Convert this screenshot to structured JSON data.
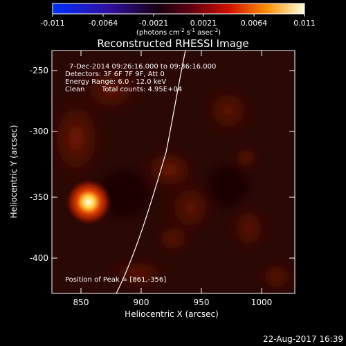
{
  "colorbar": {
    "ticks": [
      "-0.011",
      "-0.0064",
      "-0.0021",
      "0.0021",
      "0.0064",
      "0.011"
    ],
    "unit_main": "(photons cm",
    "unit_exp1": "-2",
    "unit_mid": " s",
    "unit_exp2": "-1",
    "unit_mid2": " asec",
    "unit_exp3": "-2",
    "unit_end": ")"
  },
  "title": "Reconstructed RHESSI Image",
  "info": {
    "line1": "7-Dec-2014 09:26:16.000 to 09:36:16.000",
    "line2": "Detectors: 3F 6F 7F 9F, Att 0",
    "line3": "Energy Range: 6.0 - 12.0 keV",
    "line4_a": "Clean",
    "line4_b": "Total counts: 4.95E+04"
  },
  "peak_label": "Position of Peak = [861,-356]",
  "axes": {
    "xlabel": "Heliocentric X (arcsec)",
    "ylabel": "Heliocentric Y (arcsec)",
    "xticks": [
      "850",
      "900",
      "950",
      "1000"
    ],
    "yticks": [
      "-250",
      "-300",
      "-350",
      "-400"
    ]
  },
  "timestamp": "22-Aug-2017 16:39",
  "colors": {
    "frame": "#ffffff",
    "limb": "#ffffff",
    "background": "#000000"
  }
}
